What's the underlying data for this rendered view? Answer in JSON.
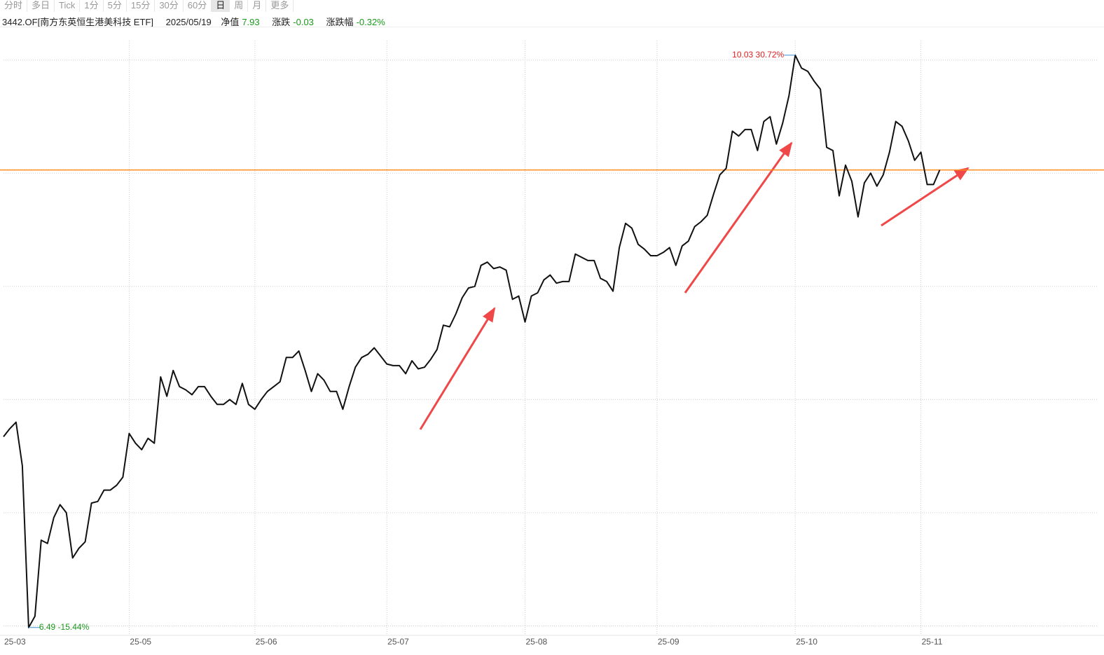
{
  "toolbar": {
    "tabs": [
      "分时",
      "多日",
      "Tick",
      "1分",
      "5分",
      "15分",
      "30分",
      "60分",
      "日",
      "周",
      "月",
      "更多"
    ],
    "active": 8
  },
  "info": {
    "code": "3442.OF[南方东英恒生港美科技 ETF]",
    "date": "2025/05/19",
    "nav_label": "净值",
    "nav": "7.93",
    "change_label": "涨跌",
    "change": "-0.03",
    "pct_label": "涨跌幅",
    "pct": "-0.32%"
  },
  "chart_data": {
    "type": "line",
    "color": "#111111",
    "categories": [
      "25-03",
      null,
      null,
      null,
      null,
      null,
      null,
      null,
      null,
      null,
      null,
      null,
      null,
      null,
      null,
      null,
      null,
      null,
      null,
      null,
      "25-05",
      null,
      null,
      null,
      null,
      null,
      null,
      null,
      null,
      null,
      null,
      null,
      null,
      null,
      null,
      null,
      null,
      null,
      null,
      null,
      "25-06",
      null,
      null,
      null,
      null,
      null,
      null,
      null,
      null,
      null,
      null,
      null,
      null,
      null,
      null,
      null,
      null,
      null,
      null,
      null,
      null,
      "25-07",
      null,
      null,
      null,
      null,
      null,
      null,
      null,
      null,
      null,
      null,
      null,
      null,
      null,
      null,
      null,
      null,
      null,
      null,
      null,
      null,
      null,
      "25-08",
      null,
      null,
      null,
      null,
      null,
      null,
      null,
      null,
      null,
      null,
      null,
      null,
      null,
      null,
      null,
      null,
      null,
      null,
      null,
      null,
      "25-09",
      null,
      null,
      null,
      null,
      null,
      null,
      null,
      null,
      null,
      null,
      null,
      null,
      null,
      null,
      null,
      null,
      null,
      null,
      null,
      null,
      null,
      "25-10",
      null,
      null,
      null,
      null,
      null,
      null,
      null,
      null,
      null,
      null,
      null,
      null,
      null,
      null,
      null,
      null,
      null,
      null,
      null,
      "25-11",
      null,
      null,
      null
    ],
    "values": [
      7.67,
      7.72,
      7.76,
      7.49,
      6.49,
      6.56,
      7.03,
      7.01,
      7.17,
      7.25,
      7.2,
      6.92,
      6.98,
      7.02,
      7.26,
      7.27,
      7.34,
      7.34,
      7.37,
      7.42,
      7.69,
      7.63,
      7.59,
      7.66,
      7.63,
      8.04,
      7.92,
      8.08,
      7.98,
      7.96,
      7.93,
      7.98,
      7.98,
      7.92,
      7.87,
      7.87,
      7.9,
      7.87,
      8.0,
      7.87,
      7.84,
      7.9,
      7.95,
      7.98,
      8.01,
      8.16,
      8.16,
      8.2,
      8.08,
      7.95,
      8.06,
      8.02,
      7.95,
      7.95,
      7.84,
      7.98,
      8.1,
      8.16,
      8.18,
      8.22,
      8.17,
      8.12,
      8.11,
      8.11,
      8.06,
      8.14,
      8.09,
      8.1,
      8.15,
      8.21,
      8.36,
      8.35,
      8.43,
      8.53,
      8.59,
      8.6,
      8.73,
      8.75,
      8.71,
      8.72,
      8.7,
      8.52,
      8.54,
      8.38,
      8.54,
      8.56,
      8.64,
      8.67,
      8.62,
      8.63,
      8.63,
      8.8,
      8.78,
      8.76,
      8.76,
      8.65,
      8.63,
      8.57,
      8.84,
      8.99,
      8.96,
      8.86,
      8.83,
      8.79,
      8.79,
      8.81,
      8.84,
      8.73,
      8.85,
      8.88,
      8.97,
      9.0,
      9.04,
      9.17,
      9.29,
      9.33,
      9.56,
      9.53,
      9.57,
      9.57,
      9.44,
      9.62,
      9.65,
      9.48,
      9.61,
      9.78,
      10.03,
      9.95,
      9.93,
      9.87,
      9.82,
      9.46,
      9.44,
      9.16,
      9.35,
      9.25,
      9.03,
      9.24,
      9.3,
      9.22,
      9.29,
      9.43,
      9.62,
      9.59,
      9.5,
      9.38,
      9.43,
      9.23,
      9.23,
      9.32
    ],
    "ylim": [
      6.45,
      10.12
    ],
    "yticks": [
      6.5,
      7.2,
      7.9,
      8.6,
      9.3,
      10
    ],
    "grid": true,
    "reference_line": {
      "value": 9.32,
      "color": "#ff8c1a"
    },
    "annotations": [
      {
        "text": "10.03 30.72%",
        "index": 126,
        "color": "#e02020"
      },
      {
        "text": "6.49 -15.44%",
        "index": 4,
        "color": "#1a9a1a"
      }
    ]
  }
}
